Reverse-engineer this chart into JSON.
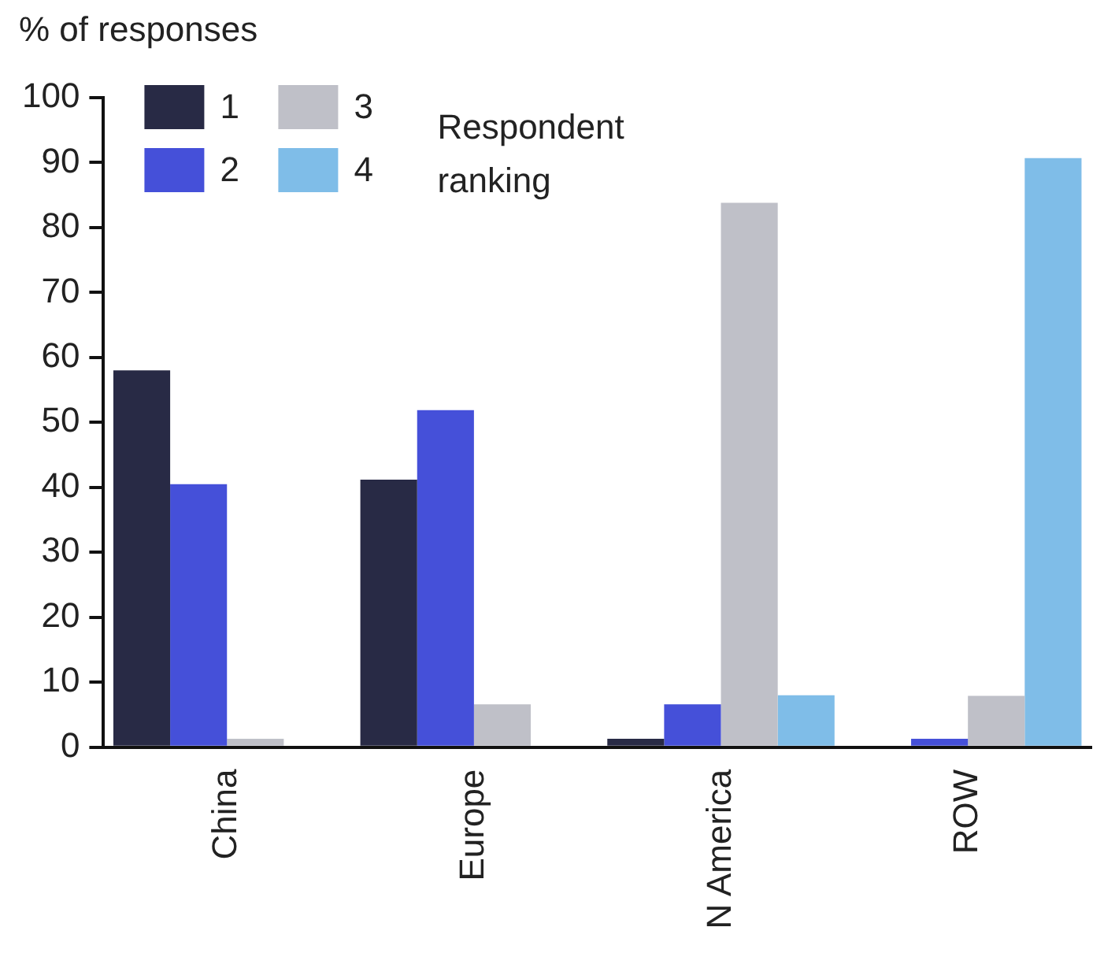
{
  "chart_data": {
    "type": "bar",
    "ylabel": "% of responses",
    "legend_title": "Respondent ranking",
    "categories": [
      "China",
      "Europe",
      "N America",
      "ROW"
    ],
    "series": [
      {
        "name": "1",
        "color": "#282a45",
        "values": [
          58,
          41.2,
          1.3,
          0
        ]
      },
      {
        "name": "2",
        "color": "#4550d9",
        "values": [
          40.5,
          51.9,
          6.6,
          1.3
        ]
      },
      {
        "name": "3",
        "color": "#bfc0c8",
        "values": [
          1.3,
          6.6,
          83.8,
          7.9
        ]
      },
      {
        "name": "4",
        "color": "#7fbde8",
        "values": [
          null,
          null,
          8,
          90.7
        ]
      }
    ],
    "ylim": [
      0,
      100
    ],
    "yticks": [
      0,
      10,
      20,
      30,
      40,
      50,
      60,
      70,
      80,
      90,
      100
    ],
    "grid": false,
    "legend": "top left"
  }
}
